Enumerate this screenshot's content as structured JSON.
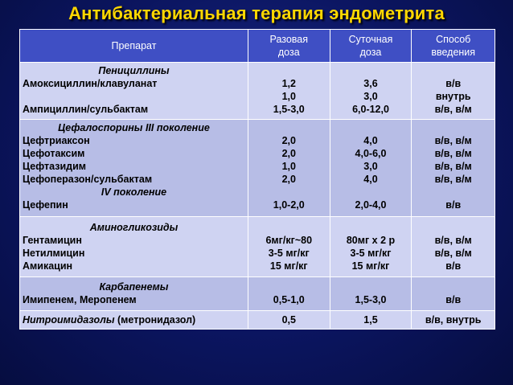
{
  "title": "Антибактериальная терапия эндометрита",
  "headers": {
    "drug": "Препарат",
    "single_dose": [
      "Разовая",
      "доза"
    ],
    "daily_dose": [
      "Суточная",
      "доза"
    ],
    "route": [
      "Способ",
      "введения"
    ]
  },
  "groups": {
    "penicillins": {
      "name": "Пенициллины",
      "drug1": "Амоксициллин/клавуланат",
      "drug2": "Ампициллин/сульбактам",
      "single": [
        "1,2",
        "1,0",
        "1,5-3,0"
      ],
      "daily": [
        "3,6",
        "3,0",
        "6,0-12,0"
      ],
      "route": [
        "в/в",
        "внутрь",
        "в/в, в/м"
      ]
    },
    "cephalosporins": {
      "name": "Цефалоспорины III поколение",
      "drugs": [
        "Цефтриаксон",
        "Цефотаксим",
        "Цефтазидим",
        "Цефоперазон/сульбактам"
      ],
      "subname": "IV поколение",
      "drug_iv": "Цефепин",
      "single": [
        "2,0",
        "2,0",
        "1,0",
        "2,0",
        "1,0-2,0"
      ],
      "daily": [
        "4,0",
        "4,0-6,0",
        "3,0",
        "4,0",
        "2,0-4,0"
      ],
      "route": [
        "в/в, в/м",
        "в/в, в/м",
        "в/в, в/м",
        "в/в, в/м",
        "в/в"
      ]
    },
    "aminoglycosides": {
      "name": "Аминогликозиды",
      "drugs": [
        "Гентамицин",
        "Нетилмицин",
        "Амикацин"
      ],
      "single": [
        "6мг/кг~80",
        "3-5 мг/кг",
        "15 мг/кг"
      ],
      "daily": [
        "80мг х 2 р",
        "3-5 мг/кг",
        "15 мг/кг"
      ],
      "route": [
        "в/в, в/м",
        "в/в, в/м",
        "в/в"
      ]
    },
    "carbapenems": {
      "name": "Карбапенемы",
      "drug": "Имипенем, Меропенем",
      "single": "0,5-1,0",
      "daily": "1,5-3,0",
      "route": "в/в"
    },
    "nitroimidazoles": {
      "name": "Нитроимидазолы",
      "suffix": " (метронидазол)",
      "single": "0,5",
      "daily": "1,5",
      "route": "в/в, внутрь"
    }
  }
}
